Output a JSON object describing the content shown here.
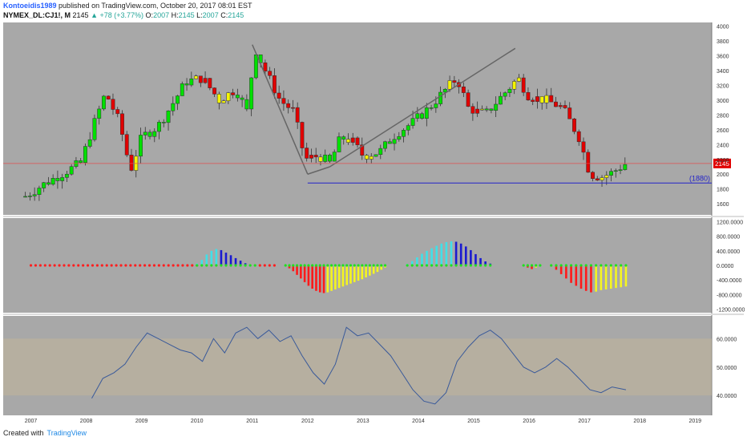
{
  "header": {
    "author": "Kontoeidis1989",
    "published": "published on TradingView.com, October 20, 2017 08:01 EST",
    "symbol": "NYMEX_DL:CJ1!, M",
    "last": "2145",
    "change": "▲ +78 (+3.77%)",
    "open_label": "O:",
    "open": "2007",
    "high_label": "H:",
    "high": "2145",
    "low_label": "L:",
    "low": "2007",
    "close_label": "C:",
    "close": "2145"
  },
  "footer": {
    "created_with": "Created with",
    "brand": "TradingView"
  },
  "colors": {
    "pane_bg": "#a8a8a8",
    "bull": "#00e000",
    "bear": "#e00000",
    "neutral": "#f5f500",
    "support": "#2323c8",
    "price_line": "#e05050",
    "rsi_band": "#c8b896"
  },
  "chart_data": [
    {
      "type": "candlestick",
      "pane": "price",
      "x_ticks": [
        "2007",
        "2008",
        "2009",
        "2010",
        "2011",
        "2012",
        "2013",
        "2014",
        "2015",
        "2016",
        "2017",
        "2018",
        "2019"
      ],
      "y_ticks": [
        "4000",
        "3800",
        "3600",
        "3400",
        "3200",
        "3000",
        "2800",
        "2600",
        "2400",
        "2200",
        "2000",
        "1800",
        "1600"
      ],
      "ylim": [
        1450,
        4050
      ],
      "current_price_label": "2145",
      "support_label": "(1880)",
      "support_level": 1880,
      "current_price": 2145,
      "trendlines": [
        {
          "from": [
            2012.0,
            2000
          ],
          "to": [
            2012.4,
            2100
          ]
        },
        {
          "from": [
            2012.4,
            2100
          ],
          "to": [
            2015.75,
            3700
          ]
        },
        {
          "from": [
            2011.0,
            3750
          ],
          "to": [
            2012.0,
            2000
          ]
        }
      ],
      "anchors": [
        [
          2006.9,
          1700
        ],
        [
          2007.2,
          1850
        ],
        [
          2007.5,
          1980
        ],
        [
          2007.9,
          2150
        ],
        [
          2008.1,
          2600
        ],
        [
          2008.35,
          3100
        ],
        [
          2008.6,
          2700
        ],
        [
          2008.8,
          2050
        ],
        [
          2009.0,
          2500
        ],
        [
          2009.3,
          2650
        ],
        [
          2009.6,
          3000
        ],
        [
          2009.8,
          3250
        ],
        [
          2010.1,
          3300
        ],
        [
          2010.4,
          3000
        ],
        [
          2010.7,
          3150
        ],
        [
          2010.9,
          2850
        ],
        [
          2011.05,
          3700
        ],
        [
          2011.2,
          3450
        ],
        [
          2011.5,
          3000
        ],
        [
          2011.75,
          2850
        ],
        [
          2011.95,
          2200
        ],
        [
          2012.2,
          2250
        ],
        [
          2012.4,
          2150
        ],
        [
          2012.6,
          2500
        ],
        [
          2012.8,
          2450
        ],
        [
          2013.0,
          2250
        ],
        [
          2013.3,
          2300
        ],
        [
          2013.6,
          2550
        ],
        [
          2013.9,
          2700
        ],
        [
          2014.2,
          2900
        ],
        [
          2014.5,
          3150
        ],
        [
          2014.7,
          3300
        ],
        [
          2014.9,
          2900
        ],
        [
          2015.2,
          2800
        ],
        [
          2015.5,
          3050
        ],
        [
          2015.8,
          3300
        ],
        [
          2016.0,
          3050
        ],
        [
          2016.3,
          3000
        ],
        [
          2016.6,
          2900
        ],
        [
          2016.9,
          2500
        ],
        [
          2017.1,
          2000
        ],
        [
          2017.3,
          1960
        ],
        [
          2017.5,
          2020
        ],
        [
          2017.75,
          2145
        ]
      ]
    },
    {
      "type": "histogram",
      "pane": "oscillator",
      "y_ticks": [
        "1200.0000",
        "800.0000",
        "400.0000",
        "0.0000",
        "-400.0000",
        "-800.0000",
        "-1200.0000"
      ],
      "ylim": [
        -1300,
        1300
      ],
      "segments": [
        {
          "start": 2007.0,
          "end": 2010.0,
          "values": [
            0
          ]
        },
        {
          "start": 2010.0,
          "end": 2011.4,
          "values": [
            50,
            150,
            300,
            400,
            450,
            420,
            350,
            280,
            200,
            130,
            60,
            20,
            5,
            0,
            0,
            0,
            0
          ]
        },
        {
          "start": 2011.6,
          "end": 2013.4,
          "values": [
            -20,
            -80,
            -160,
            -260,
            -360,
            -460,
            -560,
            -640,
            -700,
            -740,
            -760,
            -740,
            -700,
            -660,
            -620,
            -580,
            -540,
            -500,
            -460,
            -420,
            -380,
            -330,
            -280,
            -230,
            -180,
            -120,
            -60
          ]
        },
        {
          "start": 2013.8,
          "end": 2015.3,
          "values": [
            40,
            120,
            220,
            320,
            400,
            470,
            540,
            600,
            640,
            660,
            650,
            600,
            520,
            420,
            310,
            200,
            110,
            50
          ]
        },
        {
          "start": 2015.9,
          "end": 2016.2,
          "values": [
            -20,
            -60,
            -100,
            -60,
            -20
          ]
        },
        {
          "start": 2016.4,
          "end": 2017.75,
          "values": [
            -30,
            -120,
            -240,
            -360,
            -480,
            -560,
            -640,
            -700,
            -740,
            -720,
            -680,
            -660,
            -640,
            -620,
            -600,
            -580
          ]
        }
      ]
    },
    {
      "type": "line",
      "pane": "rsi",
      "y_ticks": [
        "60.0000",
        "50.0000",
        "40.0000"
      ],
      "ylim": [
        33,
        68
      ],
      "band": [
        40,
        60
      ],
      "x": [
        2008.1,
        2008.3,
        2008.5,
        2008.7,
        2008.9,
        2009.1,
        2009.3,
        2009.5,
        2009.7,
        2009.9,
        2010.1,
        2010.3,
        2010.5,
        2010.7,
        2010.9,
        2011.1,
        2011.3,
        2011.5,
        2011.7,
        2011.9,
        2012.1,
        2012.3,
        2012.5,
        2012.7,
        2012.9,
        2013.1,
        2013.3,
        2013.5,
        2013.7,
        2013.9,
        2014.1,
        2014.3,
        2014.5,
        2014.7,
        2014.9,
        2015.1,
        2015.3,
        2015.5,
        2015.7,
        2015.9,
        2016.1,
        2016.3,
        2016.5,
        2016.7,
        2016.9,
        2017.1,
        2017.3,
        2017.5,
        2017.75
      ],
      "y": [
        39,
        46,
        48,
        51,
        57,
        62,
        60,
        58,
        56,
        55,
        52,
        60,
        55,
        62,
        64,
        60,
        63,
        59,
        61,
        54,
        48,
        44,
        51,
        64,
        61,
        62,
        58,
        54,
        48,
        42,
        38,
        37,
        41,
        52,
        57,
        61,
        63,
        60,
        55,
        50,
        48,
        50,
        53,
        50,
        46,
        42,
        41,
        43,
        42
      ]
    }
  ]
}
